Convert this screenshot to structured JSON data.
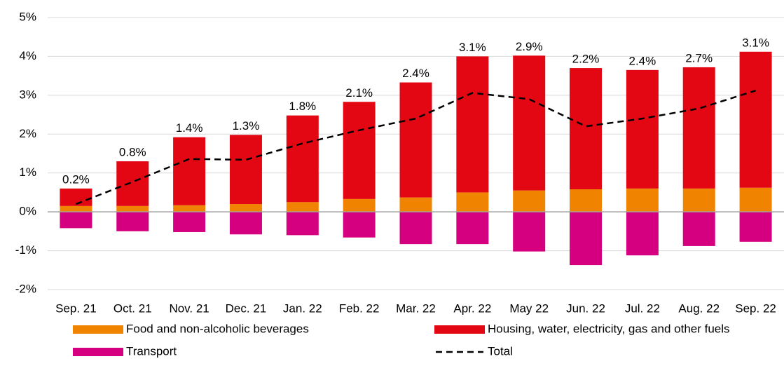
{
  "chart_data": {
    "type": "bar",
    "stacked": true,
    "grid": true,
    "legend": "bottom",
    "categories": [
      "Sep. 21",
      "Oct. 21",
      "Nov. 21",
      "Dec. 21",
      "Jan. 22",
      "Feb. 22",
      "Mar. 22",
      "Apr. 22",
      "May 22",
      "Jun. 22",
      "Jul. 22",
      "Aug. 22",
      "Sep. 22"
    ],
    "ylim": [
      -2,
      5
    ],
    "yticks": [
      {
        "value": -2,
        "label": "-2%"
      },
      {
        "value": -1,
        "label": "-1%"
      },
      {
        "value": 0,
        "label": "0%"
      },
      {
        "value": 1,
        "label": "1%"
      },
      {
        "value": 2,
        "label": "2%"
      },
      {
        "value": 3,
        "label": "3%"
      },
      {
        "value": 4,
        "label": "4%"
      },
      {
        "value": 5,
        "label": "5%"
      }
    ],
    "series": [
      {
        "name": "Food and non-alcoholic beverages",
        "type": "bar",
        "color": "#f08300",
        "values": [
          0.15,
          0.15,
          0.17,
          0.2,
          0.25,
          0.33,
          0.37,
          0.5,
          0.55,
          0.58,
          0.6,
          0.6,
          0.62
        ]
      },
      {
        "name": "Housing, water, electricity, gas and other fuels",
        "type": "bar",
        "color": "#e30613",
        "values": [
          0.45,
          1.15,
          1.75,
          1.78,
          2.23,
          2.5,
          2.96,
          3.5,
          3.47,
          3.12,
          3.05,
          3.12,
          3.5
        ]
      },
      {
        "name": "Transport",
        "type": "bar",
        "color": "#d5007f",
        "values": [
          -0.42,
          -0.5,
          -0.52,
          -0.58,
          -0.6,
          -0.66,
          -0.83,
          -0.83,
          -1.02,
          -1.37,
          -1.12,
          -0.88,
          -0.77
        ]
      },
      {
        "name": "Total",
        "type": "line",
        "color": "#000000",
        "values": [
          0.2,
          0.77,
          1.36,
          1.34,
          1.76,
          2.1,
          2.4,
          3.06,
          2.9,
          2.2,
          2.4,
          2.66,
          3.12
        ],
        "value_labels": [
          "0.2%",
          "0.8%",
          "1.4%",
          "1.3%",
          "1.8%",
          "2.1%",
          "2.4%",
          "3.1%",
          "2.9%",
          "2.2%",
          "2.4%",
          "2.7%",
          "3.1%"
        ]
      }
    ]
  }
}
